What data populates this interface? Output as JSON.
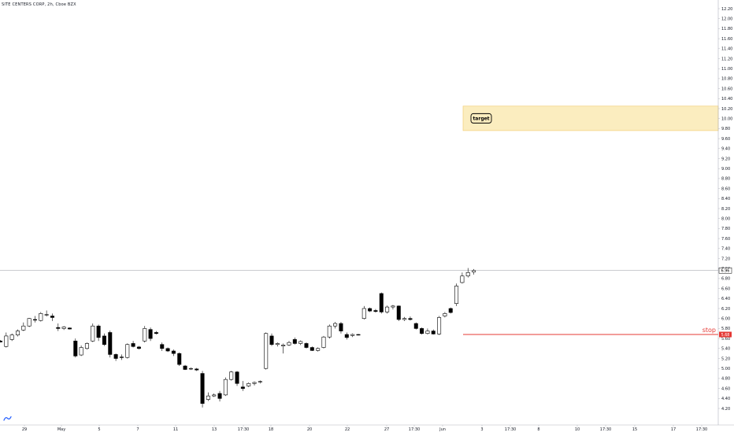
{
  "chart_data": {
    "type": "candlestick",
    "title": "SITE CENTERS CORP, 2h, Cboe BZX",
    "ylim": [
      4.12,
      12.32
    ],
    "y_ticks": [
      "4.20",
      "4.40",
      "4.60",
      "4.80",
      "5.00",
      "5.20",
      "5.40",
      "5.60",
      "5.80",
      "6.00",
      "6.20",
      "6.40",
      "6.60",
      "6.80",
      "7.00",
      "7.20",
      "7.40",
      "7.60",
      "7.80",
      "8.00",
      "8.20",
      "8.40",
      "8.60",
      "8.80",
      "9.00",
      "9.20",
      "9.40",
      "9.60",
      "9.80",
      "10.00",
      "10.20",
      "10.40",
      "10.60",
      "10.80",
      "11.00",
      "11.20",
      "11.40",
      "11.60",
      "11.80",
      "12.00",
      "12.20"
    ],
    "x_ticks": [
      "29",
      "May",
      "5",
      "7",
      "11",
      "13",
      "17:30",
      "18",
      "20",
      "22",
      "27",
      "17:30",
      "Jun",
      "3",
      "17:30",
      "8",
      "10",
      "17:30",
      "15",
      "17",
      "17:30"
    ],
    "candles": [
      {
        "o": 5.55,
        "h": 5.57,
        "l": 5.52,
        "c": 5.53
      },
      {
        "o": 5.44,
        "h": 5.72,
        "l": 5.42,
        "c": 5.65
      },
      {
        "o": 5.58,
        "h": 5.7,
        "l": 5.55,
        "c": 5.67
      },
      {
        "o": 5.67,
        "h": 5.78,
        "l": 5.64,
        "c": 5.75
      },
      {
        "o": 5.77,
        "h": 5.92,
        "l": 5.75,
        "c": 5.85
      },
      {
        "o": 5.85,
        "h": 6.01,
        "l": 5.83,
        "c": 6.0
      },
      {
        "o": 5.98,
        "h": 6.05,
        "l": 5.92,
        "c": 5.97
      },
      {
        "o": 5.96,
        "h": 6.13,
        "l": 5.94,
        "c": 6.1
      },
      {
        "o": 6.07,
        "h": 6.16,
        "l": 6.04,
        "c": 6.08
      },
      {
        "o": 6.05,
        "h": 6.1,
        "l": 5.95,
        "c": 6.02
      },
      {
        "o": 5.82,
        "h": 5.9,
        "l": 5.75,
        "c": 5.8
      },
      {
        "o": 5.8,
        "h": 5.85,
        "l": 5.77,
        "c": 5.83
      },
      {
        "o": 5.81,
        "h": 5.82,
        "l": 5.78,
        "c": 5.79
      },
      {
        "o": 5.55,
        "h": 5.6,
        "l": 5.22,
        "c": 5.25
      },
      {
        "o": 5.27,
        "h": 5.46,
        "l": 5.25,
        "c": 5.42
      },
      {
        "o": 5.4,
        "h": 5.52,
        "l": 5.38,
        "c": 5.5
      },
      {
        "o": 5.55,
        "h": 5.9,
        "l": 5.53,
        "c": 5.85
      },
      {
        "o": 5.85,
        "h": 5.88,
        "l": 5.55,
        "c": 5.62
      },
      {
        "o": 5.65,
        "h": 5.7,
        "l": 5.45,
        "c": 5.48
      },
      {
        "o": 5.72,
        "h": 5.76,
        "l": 5.22,
        "c": 5.28
      },
      {
        "o": 5.28,
        "h": 5.3,
        "l": 5.15,
        "c": 5.2
      },
      {
        "o": 5.23,
        "h": 5.28,
        "l": 5.17,
        "c": 5.22
      },
      {
        "o": 5.22,
        "h": 5.5,
        "l": 5.2,
        "c": 5.48
      },
      {
        "o": 5.5,
        "h": 5.55,
        "l": 5.42,
        "c": 5.44
      },
      {
        "o": 5.43,
        "h": 5.45,
        "l": 5.38,
        "c": 5.4
      },
      {
        "o": 5.55,
        "h": 5.85,
        "l": 5.52,
        "c": 5.8
      },
      {
        "o": 5.78,
        "h": 5.82,
        "l": 5.55,
        "c": 5.6
      },
      {
        "o": 5.72,
        "h": 5.75,
        "l": 5.68,
        "c": 5.7
      },
      {
        "o": 5.48,
        "h": 5.52,
        "l": 5.35,
        "c": 5.4
      },
      {
        "o": 5.4,
        "h": 5.42,
        "l": 5.33,
        "c": 5.35
      },
      {
        "o": 5.35,
        "h": 5.38,
        "l": 5.25,
        "c": 5.3
      },
      {
        "o": 5.3,
        "h": 5.32,
        "l": 5.05,
        "c": 5.08
      },
      {
        "o": 5.05,
        "h": 5.07,
        "l": 4.97,
        "c": 4.98
      },
      {
        "o": 4.99,
        "h": 5.02,
        "l": 4.97,
        "c": 5.0
      },
      {
        "o": 4.99,
        "h": 5.01,
        "l": 4.95,
        "c": 4.97
      },
      {
        "o": 4.9,
        "h": 4.95,
        "l": 4.22,
        "c": 4.3
      },
      {
        "o": 4.38,
        "h": 4.52,
        "l": 4.35,
        "c": 4.45
      },
      {
        "o": 4.45,
        "h": 4.5,
        "l": 4.43,
        "c": 4.47
      },
      {
        "o": 4.5,
        "h": 4.55,
        "l": 4.34,
        "c": 4.4
      },
      {
        "o": 4.47,
        "h": 4.82,
        "l": 4.45,
        "c": 4.78
      },
      {
        "o": 4.78,
        "h": 4.95,
        "l": 4.76,
        "c": 4.93
      },
      {
        "o": 4.93,
        "h": 4.95,
        "l": 4.65,
        "c": 4.7
      },
      {
        "o": 4.63,
        "h": 4.75,
        "l": 4.55,
        "c": 4.6
      },
      {
        "o": 4.65,
        "h": 4.72,
        "l": 4.63,
        "c": 4.7
      },
      {
        "o": 4.7,
        "h": 4.74,
        "l": 4.66,
        "c": 4.72
      },
      {
        "o": 4.73,
        "h": 4.76,
        "l": 4.7,
        "c": 4.74
      },
      {
        "o": 5.0,
        "h": 5.72,
        "l": 4.98,
        "c": 5.7
      },
      {
        "o": 5.65,
        "h": 5.7,
        "l": 5.45,
        "c": 5.48
      },
      {
        "o": 5.48,
        "h": 5.52,
        "l": 5.44,
        "c": 5.5
      },
      {
        "o": 5.45,
        "h": 5.5,
        "l": 5.3,
        "c": 5.47
      },
      {
        "o": 5.47,
        "h": 5.55,
        "l": 5.45,
        "c": 5.52
      },
      {
        "o": 5.58,
        "h": 5.62,
        "l": 5.48,
        "c": 5.5
      },
      {
        "o": 5.5,
        "h": 5.56,
        "l": 5.47,
        "c": 5.54
      },
      {
        "o": 5.5,
        "h": 5.52,
        "l": 5.4,
        "c": 5.42
      },
      {
        "o": 5.42,
        "h": 5.44,
        "l": 5.35,
        "c": 5.36
      },
      {
        "o": 5.36,
        "h": 5.42,
        "l": 5.34,
        "c": 5.4
      },
      {
        "o": 5.42,
        "h": 5.65,
        "l": 5.4,
        "c": 5.63
      },
      {
        "o": 5.63,
        "h": 5.88,
        "l": 5.6,
        "c": 5.85
      },
      {
        "o": 5.85,
        "h": 5.93,
        "l": 5.8,
        "c": 5.9
      },
      {
        "o": 5.9,
        "h": 5.93,
        "l": 5.7,
        "c": 5.75
      },
      {
        "o": 5.68,
        "h": 5.72,
        "l": 5.58,
        "c": 5.62
      },
      {
        "o": 5.66,
        "h": 5.7,
        "l": 5.63,
        "c": 5.68
      },
      {
        "o": 5.68,
        "h": 5.69,
        "l": 5.66,
        "c": 5.67
      },
      {
        "o": 6.0,
        "h": 6.25,
        "l": 5.98,
        "c": 6.2
      },
      {
        "o": 6.2,
        "h": 6.22,
        "l": 6.13,
        "c": 6.15
      },
      {
        "o": 6.16,
        "h": 6.19,
        "l": 6.12,
        "c": 6.14
      },
      {
        "o": 6.5,
        "h": 6.52,
        "l": 6.1,
        "c": 6.13
      },
      {
        "o": 6.13,
        "h": 6.26,
        "l": 6.1,
        "c": 6.23
      },
      {
        "o": 6.23,
        "h": 6.27,
        "l": 6.18,
        "c": 6.25
      },
      {
        "o": 6.25,
        "h": 6.26,
        "l": 5.95,
        "c": 5.98
      },
      {
        "o": 5.98,
        "h": 6.03,
        "l": 5.95,
        "c": 6.0
      },
      {
        "o": 6.0,
        "h": 6.04,
        "l": 5.96,
        "c": 5.98
      },
      {
        "o": 5.9,
        "h": 5.92,
        "l": 5.78,
        "c": 5.8
      },
      {
        "o": 5.8,
        "h": 5.82,
        "l": 5.68,
        "c": 5.7
      },
      {
        "o": 5.7,
        "h": 5.8,
        "l": 5.68,
        "c": 5.75
      },
      {
        "o": 5.75,
        "h": 5.78,
        "l": 5.68,
        "c": 5.69
      },
      {
        "o": 5.69,
        "h": 6.05,
        "l": 5.67,
        "c": 6.02
      },
      {
        "o": 6.05,
        "h": 6.13,
        "l": 6.02,
        "c": 6.1
      },
      {
        "o": 6.2,
        "h": 6.22,
        "l": 6.1,
        "c": 6.12
      },
      {
        "o": 6.3,
        "h": 6.7,
        "l": 6.25,
        "c": 6.65
      },
      {
        "o": 6.72,
        "h": 6.92,
        "l": 6.7,
        "c": 6.85
      },
      {
        "o": 6.85,
        "h": 7.01,
        "l": 6.82,
        "c": 6.92
      },
      {
        "o": 6.93,
        "h": 6.99,
        "l": 6.88,
        "c": 6.96
      }
    ],
    "current_price": {
      "value": 6.96,
      "label": "6.96"
    },
    "stop": {
      "value": 5.68,
      "label": "stop",
      "price_label": "5.68"
    },
    "target_zone": {
      "low": 9.76,
      "high": 10.25,
      "label": "target"
    },
    "colors": {
      "up_fill": "#ffffff",
      "down_fill": "#000000",
      "outline": "#000000",
      "stop": "#e53935",
      "zone_fill": "#fbedbf",
      "zone_border": "#f2c96a"
    }
  }
}
